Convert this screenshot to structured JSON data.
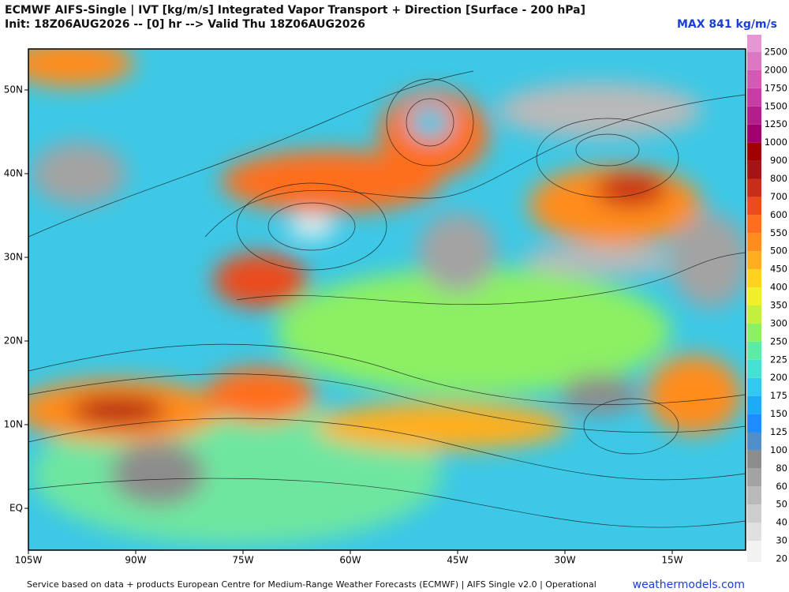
{
  "header": {
    "title": "ECMWF AIFS-Single | IVT [kg/m/s] Integrated Vapor Transport + Direction [Surface - 200 hPa]",
    "subtitle": "Init: 18Z06AUG2026 -- [0] hr --> Valid Thu 18Z06AUG2026",
    "max_label": "MAX 841 kg/m/s"
  },
  "map": {
    "lat_labels": [
      "50N",
      "40N",
      "30N",
      "20N",
      "10N",
      "EQ"
    ],
    "lon_labels": [
      "105W",
      "90W",
      "75W",
      "60W",
      "45W",
      "30W",
      "15W"
    ]
  },
  "colorbar": {
    "levels": [
      {
        "value": 20,
        "color": "#f2f2f2"
      },
      {
        "value": 30,
        "color": "#e0e0e0"
      },
      {
        "value": 40,
        "color": "#cdcdcd"
      },
      {
        "value": 50,
        "color": "#b9b9b9"
      },
      {
        "value": 60,
        "color": "#a3a3a3"
      },
      {
        "value": 80,
        "color": "#8c8c8c"
      },
      {
        "value": 100,
        "color": "#4f8ec9"
      },
      {
        "value": 125,
        "color": "#1e8cff"
      },
      {
        "value": 150,
        "color": "#1eaaf5"
      },
      {
        "value": 175,
        "color": "#32c8f0"
      },
      {
        "value": 200,
        "color": "#46e1d2"
      },
      {
        "value": 225,
        "color": "#5aeba5"
      },
      {
        "value": 250,
        "color": "#8cf064"
      },
      {
        "value": 300,
        "color": "#c3f03c"
      },
      {
        "value": 350,
        "color": "#f0f028"
      },
      {
        "value": 400,
        "color": "#ffd21e"
      },
      {
        "value": 450,
        "color": "#ffaf1e"
      },
      {
        "value": 500,
        "color": "#ff8c1e"
      },
      {
        "value": 550,
        "color": "#ff6e1e"
      },
      {
        "value": 600,
        "color": "#eb4b1e"
      },
      {
        "value": 700,
        "color": "#c82d19"
      },
      {
        "value": 800,
        "color": "#a51414"
      },
      {
        "value": 900,
        "color": "#a00000"
      },
      {
        "value": 1000,
        "color": "#a0006e"
      },
      {
        "value": 1250,
        "color": "#b41e8c"
      },
      {
        "value": 1500,
        "color": "#c83ca5"
      },
      {
        "value": 1750,
        "color": "#d25ab4"
      },
      {
        "value": 2000,
        "color": "#dc78c3"
      },
      {
        "value": 2500,
        "color": "#e696d2"
      }
    ]
  },
  "footer": {
    "credit": "Service based on data + products European Centre for Medium-Range Weather Forecasts (ECMWF) | AIFS Single v2.0 | Operational",
    "site": "weathermodels.com"
  }
}
